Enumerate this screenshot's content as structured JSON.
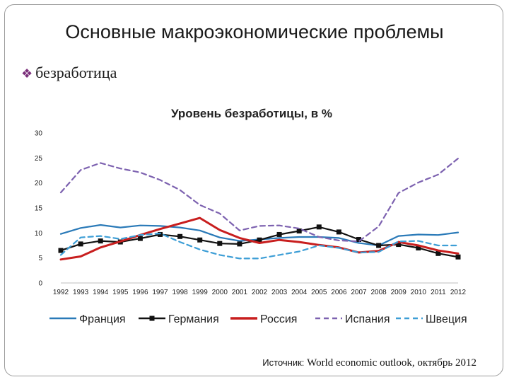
{
  "slide": {
    "title": "Основные макроэкономические проблемы",
    "bullet_mark": "❖",
    "bullet_text": "безработица",
    "source_label": "Источник:",
    "source_text": " World economic outlook, октябрь 2012"
  },
  "chart_data": {
    "type": "line",
    "title": "Уровень безработицы, в %",
    "xlabel": "",
    "ylabel": "",
    "ylim": [
      0,
      30
    ],
    "yticks": [
      0,
      5,
      10,
      15,
      20,
      25,
      30
    ],
    "x": [
      "1992",
      "1993",
      "1994",
      "1995",
      "1996",
      "1997",
      "1998",
      "1999",
      "2000",
      "2001",
      "2002",
      "2003",
      "2004",
      "2005",
      "2006",
      "2007",
      "2008",
      "2009",
      "2010",
      "2011",
      "2012"
    ],
    "series": [
      {
        "name": "Франция",
        "color": "#2a7ab8",
        "style": "solid",
        "marker": "none",
        "values": [
          9.8,
          11.0,
          11.6,
          11.1,
          11.5,
          11.4,
          11.1,
          10.5,
          9.1,
          8.4,
          8.7,
          9.0,
          9.2,
          9.2,
          9.0,
          8.0,
          7.5,
          9.4,
          9.7,
          9.6,
          10.1
        ]
      },
      {
        "name": "Германия",
        "color": "#111111",
        "style": "solid",
        "marker": "square",
        "values": [
          6.5,
          7.8,
          8.4,
          8.2,
          8.9,
          9.7,
          9.3,
          8.6,
          7.9,
          7.8,
          8.6,
          9.7,
          10.4,
          11.2,
          10.2,
          8.7,
          7.5,
          7.7,
          7.0,
          5.9,
          5.2
        ]
      },
      {
        "name": "Россия",
        "color": "#c81e1e",
        "style": "solid",
        "marker": "none",
        "values": [
          4.7,
          5.3,
          7.1,
          8.3,
          9.6,
          10.8,
          11.9,
          13.0,
          10.6,
          9.0,
          8.0,
          8.6,
          8.2,
          7.6,
          7.1,
          6.1,
          6.4,
          8.2,
          7.5,
          6.5,
          5.9
        ]
      },
      {
        "name": "Испания",
        "color": "#7d62b0",
        "style": "dashed",
        "marker": "none",
        "values": [
          18.1,
          22.6,
          24.0,
          22.9,
          22.1,
          20.6,
          18.6,
          15.6,
          13.9,
          10.5,
          11.4,
          11.5,
          10.9,
          9.2,
          8.5,
          8.3,
          11.3,
          18.0,
          20.1,
          21.7,
          24.9
        ]
      },
      {
        "name": "Швеция",
        "color": "#3d9ed6",
        "style": "dashed",
        "marker": "none",
        "values": [
          5.6,
          9.1,
          9.4,
          8.8,
          9.6,
          9.9,
          8.2,
          6.7,
          5.6,
          4.9,
          4.9,
          5.6,
          6.3,
          7.5,
          7.0,
          6.1,
          6.2,
          8.3,
          8.4,
          7.5,
          7.5
        ]
      }
    ]
  }
}
